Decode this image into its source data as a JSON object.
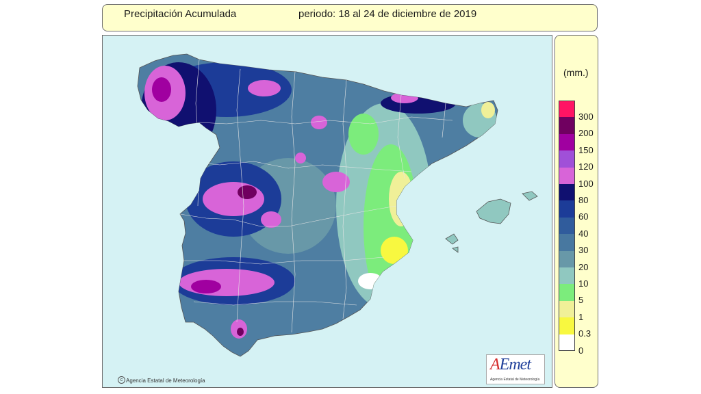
{
  "header": {
    "title": "Precipitación Acumulada",
    "period": "periodo: 18 al 24 de diciembre de 2019"
  },
  "legend": {
    "unit": "(mm.)",
    "classes": [
      {
        "label": "300",
        "color": "#ff1464"
      },
      {
        "label": "200",
        "color": "#700060"
      },
      {
        "label": "150",
        "color": "#a000a0"
      },
      {
        "label": "120",
        "color": "#a050d8"
      },
      {
        "label": "100",
        "color": "#d864d8"
      },
      {
        "label": "80",
        "color": "#101070"
      },
      {
        "label": "60",
        "color": "#1c3c98"
      },
      {
        "label": "40",
        "color": "#305c9c"
      },
      {
        "label": "30",
        "color": "#4878a0"
      },
      {
        "label": "20",
        "color": "#6898a8"
      },
      {
        "label": "10",
        "color": "#90c8c0"
      },
      {
        "label": "5",
        "color": "#7cec7c"
      },
      {
        "label": "1",
        "color": "#f0f098"
      },
      {
        "label": "0.3",
        "color": "#f8f840"
      },
      {
        "label": "0",
        "color": "#ffffff"
      }
    ]
  },
  "footer": {
    "copyright": "Agencia Estatal de Meteorología",
    "logo_text": "AEmet",
    "logo_subtitle": "Agencia Estatal de Meteorología"
  },
  "colors": {
    "sea": "#d5f2f4",
    "panel": "#ffffcc",
    "border": "#6d6d6d"
  }
}
